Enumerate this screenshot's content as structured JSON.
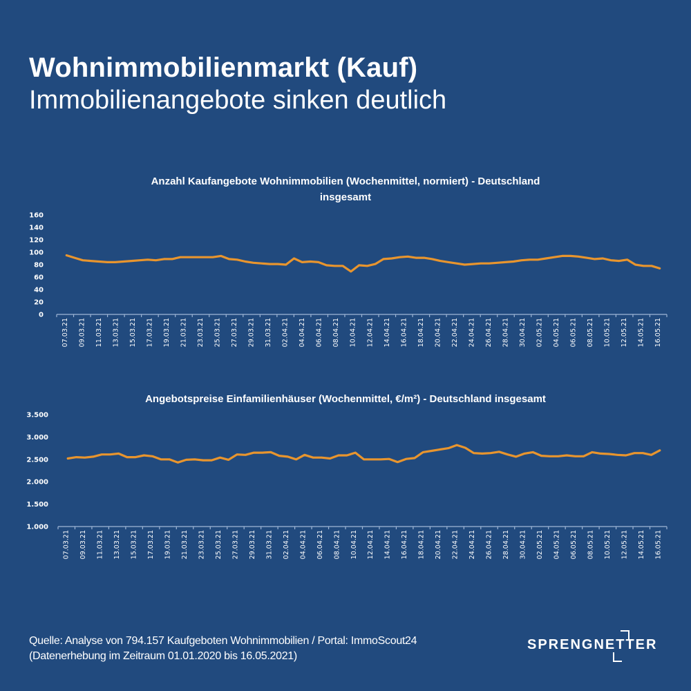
{
  "header": {
    "title": "Wohnimmobilienmarkt (Kauf)",
    "subtitle": "Immobilienangebote sinken deutlich"
  },
  "footer": {
    "source_line1": "Quelle: Analyse von 794.157 Kaufgeboten Wohnimmobilien / Portal: ImmoScout24",
    "source_line2": "(Datenerhebung im Zeitraum  01.01.2020 bis  16.05.2021)",
    "logo_text": "SPRENGNETTER"
  },
  "colors": {
    "background": "#214a7e",
    "line": "#e8952e",
    "axis": "#9fb6d6"
  },
  "chart_data": [
    {
      "type": "line",
      "title_line1": "Anzahl Kaufangebote Wohnimmobilien (Wochenmittel, normiert) - Deutschland",
      "title_line2": "insgesamt",
      "xlabel": "",
      "ylabel": "",
      "ylim": [
        0,
        160
      ],
      "yticks": [
        "0",
        "20",
        "40",
        "60",
        "80",
        "100",
        "120",
        "140",
        "160"
      ],
      "ytick_values": [
        0,
        20,
        40,
        60,
        80,
        100,
        120,
        140,
        160
      ],
      "grid": false,
      "legend": "none",
      "categories": [
        "07.03.21",
        "09.03.21",
        "11.03.21",
        "13.03.21",
        "15.03.21",
        "17.03.21",
        "19.03.21",
        "21.03.21",
        "23.03.21",
        "25.03.21",
        "27.03.21",
        "29.03.21",
        "31.03.21",
        "02.04.21",
        "04.04.21",
        "06.04.21",
        "08.04.21",
        "10.04.21",
        "12.04.21",
        "14.04.21",
        "16.04.21",
        "18.04.21",
        "20.04.21",
        "22.04.21",
        "24.04.21",
        "26.04.21",
        "28.04.21",
        "30.04.21",
        "02.05.21",
        "04.05.21",
        "06.05.21",
        "08.05.21",
        "10.05.21",
        "12.05.21",
        "14.05.21",
        "16.05.21"
      ],
      "series": [
        {
          "name": "Anzahl Kaufangebote",
          "values": [
            95,
            91,
            87,
            86,
            85,
            84,
            84,
            85,
            86,
            87,
            88,
            87,
            89,
            89,
            92,
            92,
            92,
            92,
            92,
            94,
            89,
            88,
            85,
            83,
            82,
            81,
            81,
            80,
            90,
            84,
            85,
            84,
            79,
            78,
            78,
            69,
            79,
            78,
            81,
            89,
            90,
            92,
            93,
            91,
            91,
            89,
            86,
            84,
            82,
            80,
            81,
            82,
            82,
            83,
            84,
            85,
            87,
            88,
            88,
            90,
            92,
            94,
            94,
            93,
            91,
            89,
            90,
            87,
            86,
            88,
            80,
            78,
            78,
            74
          ]
        }
      ]
    },
    {
      "type": "line",
      "title_line1": "Angebotspreise Einfamilienhäuser (Wochenmittel, €/m²) - Deutschland insgesamt",
      "xlabel": "",
      "ylabel": "",
      "ylim": [
        1000,
        3500
      ],
      "yticks": [
        "1.000",
        "1.500",
        "2.000",
        "2.500",
        "3.000",
        "3.500"
      ],
      "ytick_values": [
        1000,
        1500,
        2000,
        2500,
        3000,
        3500
      ],
      "grid": false,
      "legend": "none",
      "categories": [
        "07.03.21",
        "09.03.21",
        "11.03.21",
        "13.03.21",
        "15.03.21",
        "17.03.21",
        "19.03.21",
        "21.03.21",
        "23.03.21",
        "25.03.21",
        "27.03.21",
        "29.03.21",
        "31.03.21",
        "02.04.21",
        "04.04.21",
        "06.04.21",
        "08.04.21",
        "10.04.21",
        "12.04.21",
        "14.04.21",
        "16.04.21",
        "18.04.21",
        "20.04.21",
        "22.04.21",
        "24.04.21",
        "26.04.21",
        "28.04.21",
        "30.04.21",
        "02.05.21",
        "04.05.21",
        "06.05.21",
        "08.05.21",
        "10.05.21",
        "12.05.21",
        "14.05.21",
        "16.05.21"
      ],
      "series": [
        {
          "name": "Angebotspreise €/m²",
          "values": [
            2520,
            2550,
            2540,
            2560,
            2610,
            2610,
            2630,
            2550,
            2550,
            2590,
            2570,
            2500,
            2500,
            2430,
            2490,
            2500,
            2480,
            2480,
            2540,
            2490,
            2610,
            2600,
            2650,
            2650,
            2660,
            2580,
            2560,
            2500,
            2600,
            2540,
            2540,
            2520,
            2590,
            2590,
            2650,
            2500,
            2500,
            2500,
            2510,
            2440,
            2510,
            2530,
            2660,
            2690,
            2720,
            2750,
            2820,
            2760,
            2640,
            2630,
            2640,
            2670,
            2610,
            2560,
            2630,
            2660,
            2580,
            2570,
            2570,
            2590,
            2570,
            2570,
            2660,
            2630,
            2620,
            2600,
            2590,
            2640,
            2640,
            2600,
            2700
          ]
        }
      ]
    }
  ]
}
